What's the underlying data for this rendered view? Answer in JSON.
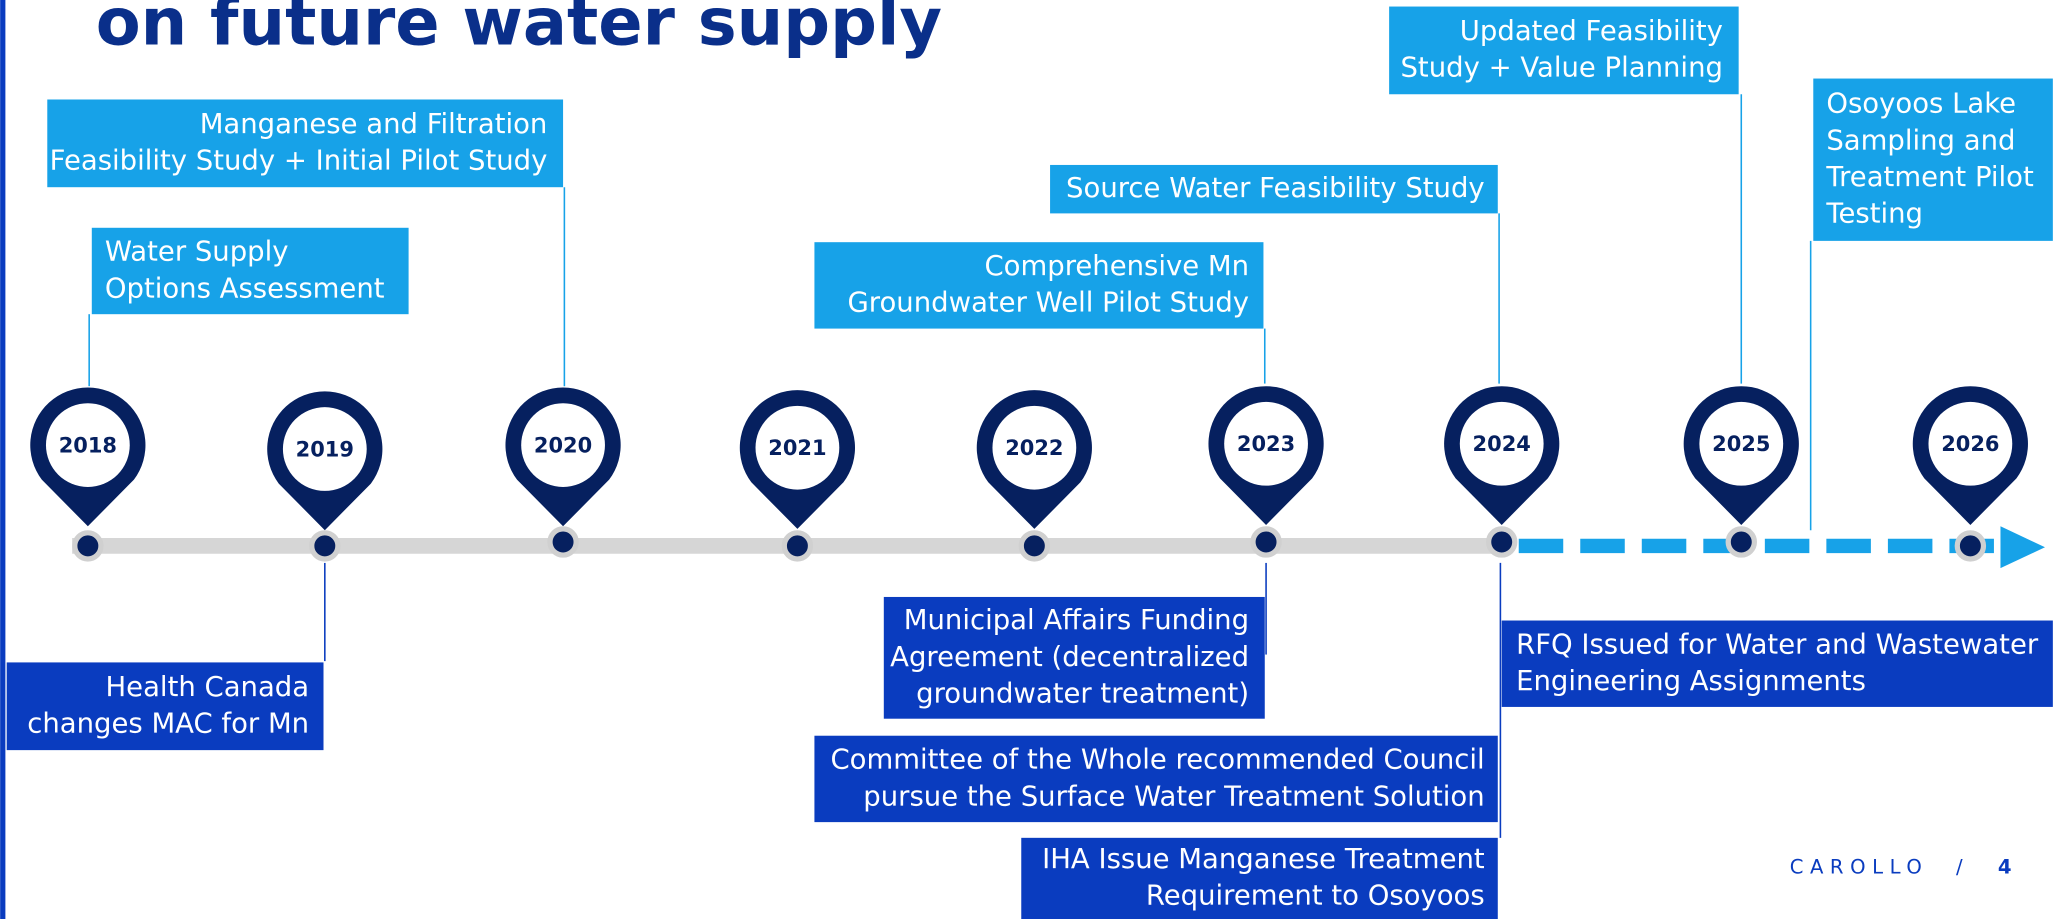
{
  "title": "on future water supply",
  "years": [
    "2018",
    "2019",
    "2020",
    "2021",
    "2022",
    "2023",
    "2024",
    "2025",
    "2026"
  ],
  "events_above": [
    {
      "lines": [
        "Water Supply",
        "Options Assessment"
      ]
    },
    {
      "lines": [
        "Manganese and Filtration",
        "Feasibility Study + Initial Pilot Study"
      ]
    },
    {
      "lines": [
        "Comprehensive Mn",
        "Groundwater Well Pilot Study"
      ]
    },
    {
      "lines": [
        "Source Water Feasibility Study"
      ]
    },
    {
      "lines": [
        "Updated Feasibility",
        "Study + Value Planning"
      ]
    },
    {
      "lines": [
        "Osoyoos Lake",
        "Sampling and",
        "Treatment Pilot",
        "Testing"
      ]
    }
  ],
  "events_below": [
    {
      "lines": [
        "Health Canada",
        "changes MAC for Mn"
      ]
    },
    {
      "lines": [
        "Municipal Affairs Funding",
        "Agreement (decentralized",
        "groundwater treatment)"
      ]
    },
    {
      "lines": [
        "Committee of the Whole recommended Council",
        "pursue the Surface Water Treatment Solution"
      ]
    },
    {
      "lines": [
        "IHA Issue Manganese Treatment",
        "Requirement to Osoyoos"
      ]
    },
    {
      "lines": [
        "RFQ Issued for Water and Wastewater",
        "Engineering Assignments"
      ]
    }
  ],
  "footer": {
    "brand": "CAROLLO",
    "separator": "/",
    "page": "4"
  }
}
